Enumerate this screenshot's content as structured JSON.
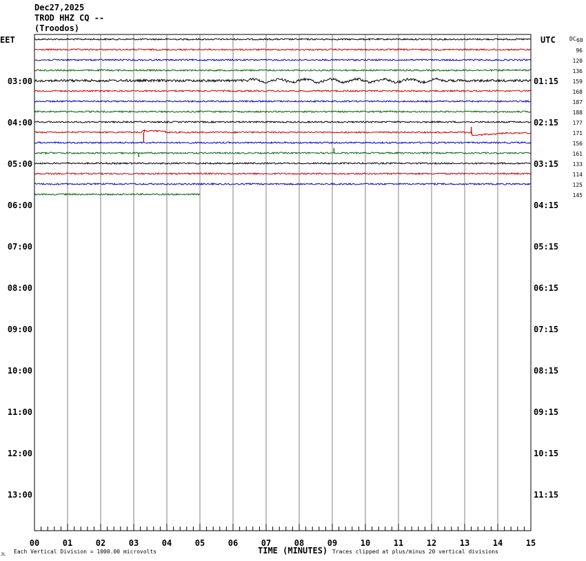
{
  "header": {
    "date": "Dec27,2025",
    "station": "TROD HHZ CQ --",
    "location": "(Troodos)"
  },
  "chart_data": {
    "type": "line",
    "title": "TROD HHZ CQ --",
    "xlabel": "TIME (MINUTES)",
    "xlim": [
      0,
      15
    ],
    "x_ticks": [
      "00",
      "01",
      "02",
      "03",
      "04",
      "05",
      "06",
      "07",
      "08",
      "09",
      "10",
      "11",
      "12",
      "13",
      "14",
      "15"
    ],
    "left_axis_title": "EET",
    "right_axis_title": "UTC",
    "dc_header": "DC",
    "left_hour_labels": [
      "03:00",
      "04:00",
      "05:00",
      "06:00",
      "07:00",
      "08:00",
      "09:00",
      "10:00",
      "11:00",
      "12:00",
      "13:00"
    ],
    "right_hour_labels": [
      "01:15",
      "02:15",
      "03:15",
      "04:15",
      "05:15",
      "06:15",
      "07:15",
      "08:15",
      "09:15",
      "10:15",
      "11:15"
    ],
    "dc_values": [
      "60",
      "96",
      "120",
      "136",
      "159",
      "168",
      "187",
      "188",
      "177",
      "171",
      "156",
      "161",
      "133",
      "114",
      "125",
      "145"
    ],
    "trace_colors": [
      "#000000",
      "#cc0000",
      "#0000cc",
      "#006600"
    ],
    "trace_count": 16,
    "last_trace_end_minute": 5.0,
    "grid": true,
    "footnote_left": "Each Vertical Division = 1000.00 microvolts",
    "footnote_right": "Traces clipped at plus/minus 20 vertical divisions",
    "corner_mark": "JL"
  }
}
